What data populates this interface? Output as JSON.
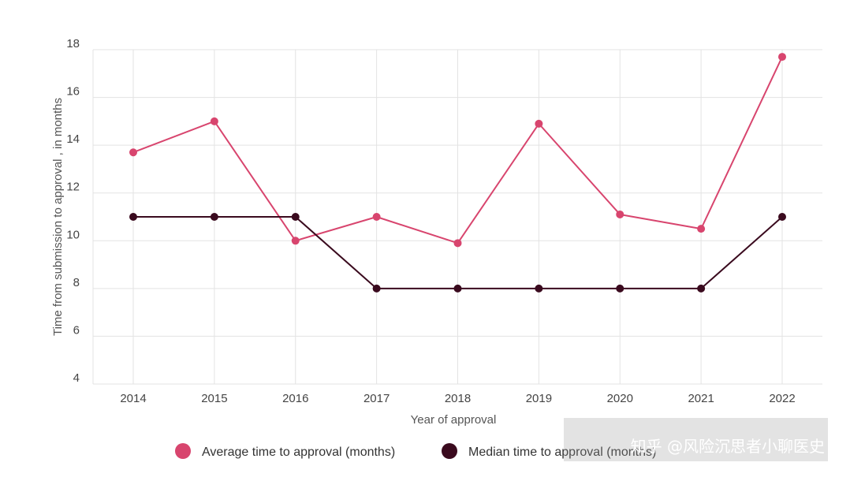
{
  "chart_data": {
    "type": "line",
    "x": [
      2014,
      2015,
      2016,
      2017,
      2018,
      2019,
      2020,
      2021,
      2022
    ],
    "series": [
      {
        "name": "Average time to approval (months)",
        "color": "#d8456e",
        "values": [
          13.7,
          15.0,
          10.0,
          11.0,
          9.9,
          14.9,
          11.1,
          10.5,
          17.7
        ]
      },
      {
        "name": "Median time to approval (months)",
        "color": "#3a0a1e",
        "values": [
          11,
          11,
          11,
          8,
          8,
          8,
          8,
          8,
          11
        ]
      }
    ],
    "xlabel": "Year of approval",
    "ylabel": "Time from submission to approval , in months",
    "ylim": [
      4,
      18
    ],
    "yticks": [
      4,
      6,
      8,
      10,
      12,
      14,
      16,
      18
    ],
    "grid": true,
    "legend_position": "bottom"
  },
  "watermark": "知乎 @风险沉思者小聊医史"
}
